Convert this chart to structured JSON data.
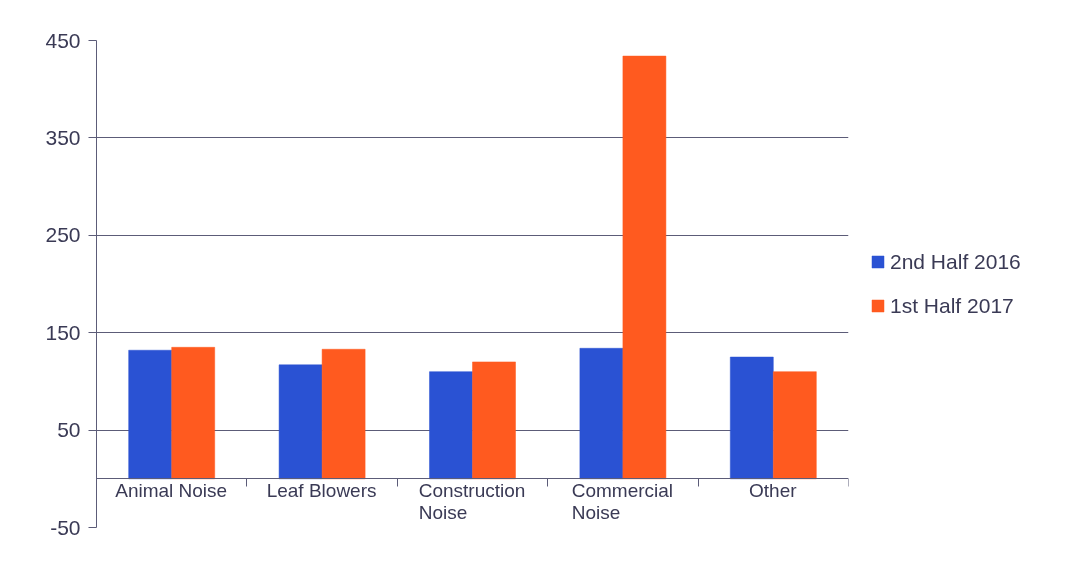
{
  "chart_data": {
    "type": "bar",
    "categories": [
      "Animal Noise",
      "Leaf Blowers",
      "Construction Noise",
      "Commercial Noise",
      "Other"
    ],
    "series": [
      {
        "name": "2nd Half 2016",
        "color": "#2a52d3",
        "values": [
          132,
          117,
          110,
          134,
          125
        ]
      },
      {
        "name": "1st Half 2017",
        "color": "#ff5a1f",
        "values": [
          135,
          133,
          120,
          434,
          110
        ]
      }
    ],
    "ylim": [
      -50,
      450
    ],
    "yticks": [
      -50,
      50,
      150,
      250,
      350,
      450
    ],
    "grid": "y",
    "legend": "right"
  }
}
